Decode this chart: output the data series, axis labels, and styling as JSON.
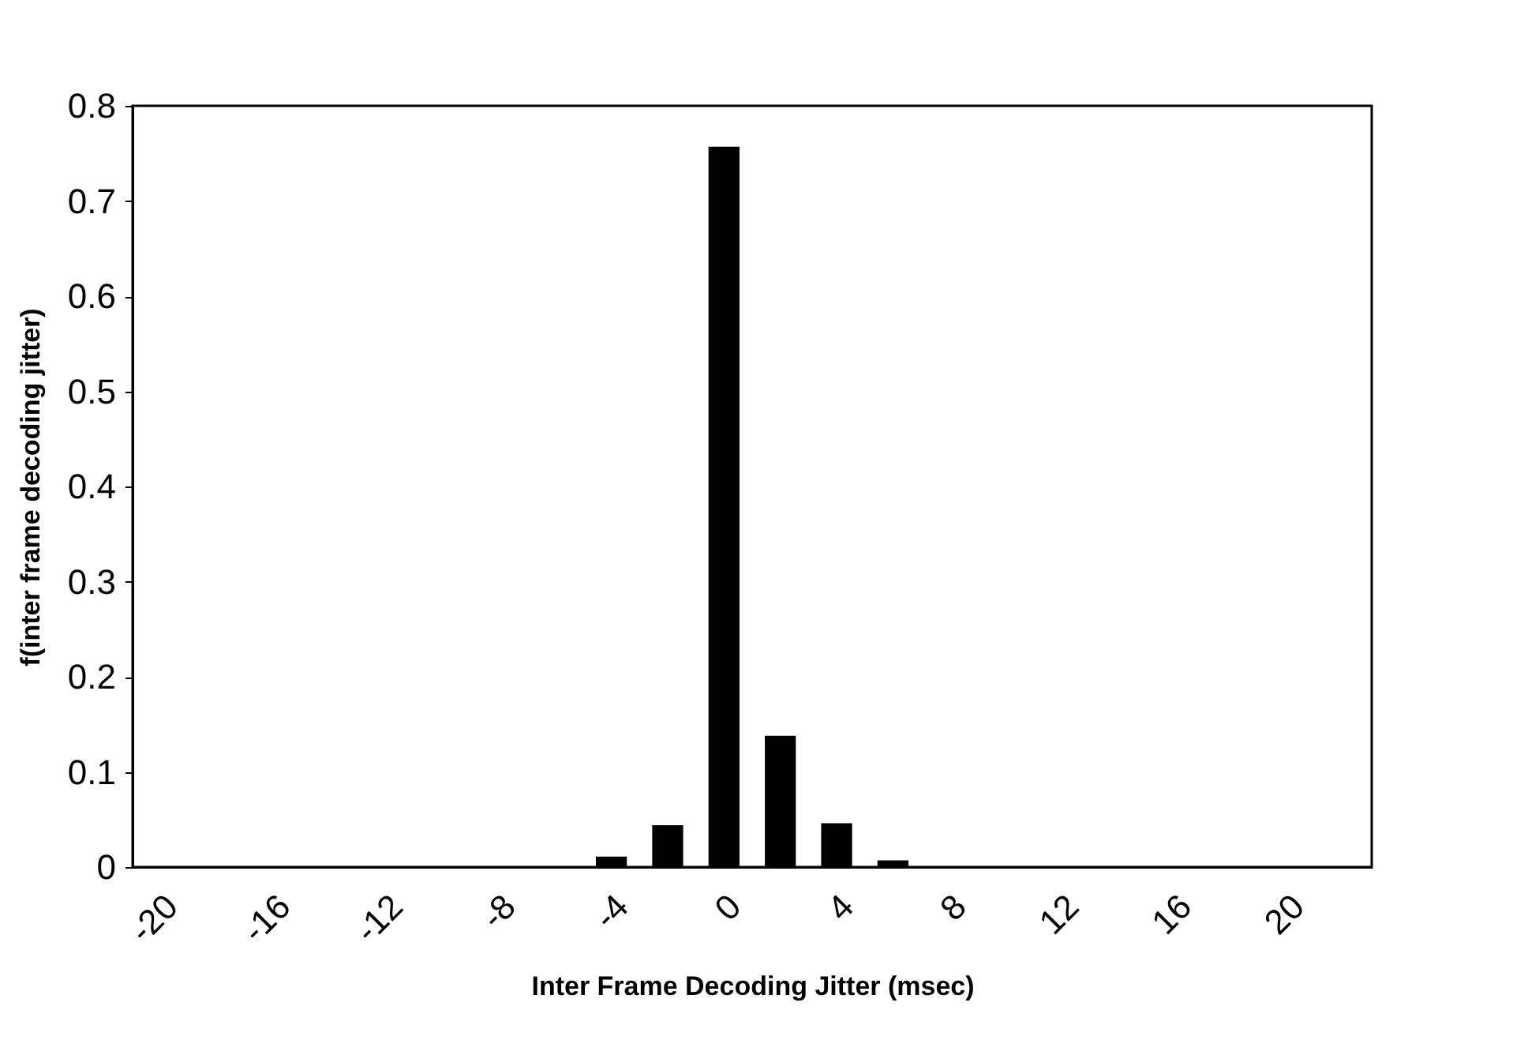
{
  "chart_data": {
    "type": "bar",
    "xlabel": "Inter Frame Decoding Jitter (msec)",
    "ylabel": "f(inter frame decoding jitter)",
    "categories": [
      "-20",
      null,
      "-16",
      null,
      "-12",
      null,
      "-8",
      null,
      "-4",
      null,
      "0",
      null,
      "4",
      null,
      "8",
      null,
      "12",
      null,
      "16",
      null,
      "20",
      null
    ],
    "values": [
      0,
      0,
      0,
      0,
      0,
      0,
      0,
      0,
      0.011,
      0.044,
      0.757,
      0.138,
      0.046,
      0.007,
      0,
      0,
      0,
      0,
      0,
      0,
      0,
      0
    ],
    "color": "#000000",
    "ylim": [
      0,
      0.8
    ],
    "yticks": [
      0,
      0.1,
      0.2,
      0.3,
      0.4,
      0.5,
      0.6,
      0.7,
      0.8
    ]
  }
}
